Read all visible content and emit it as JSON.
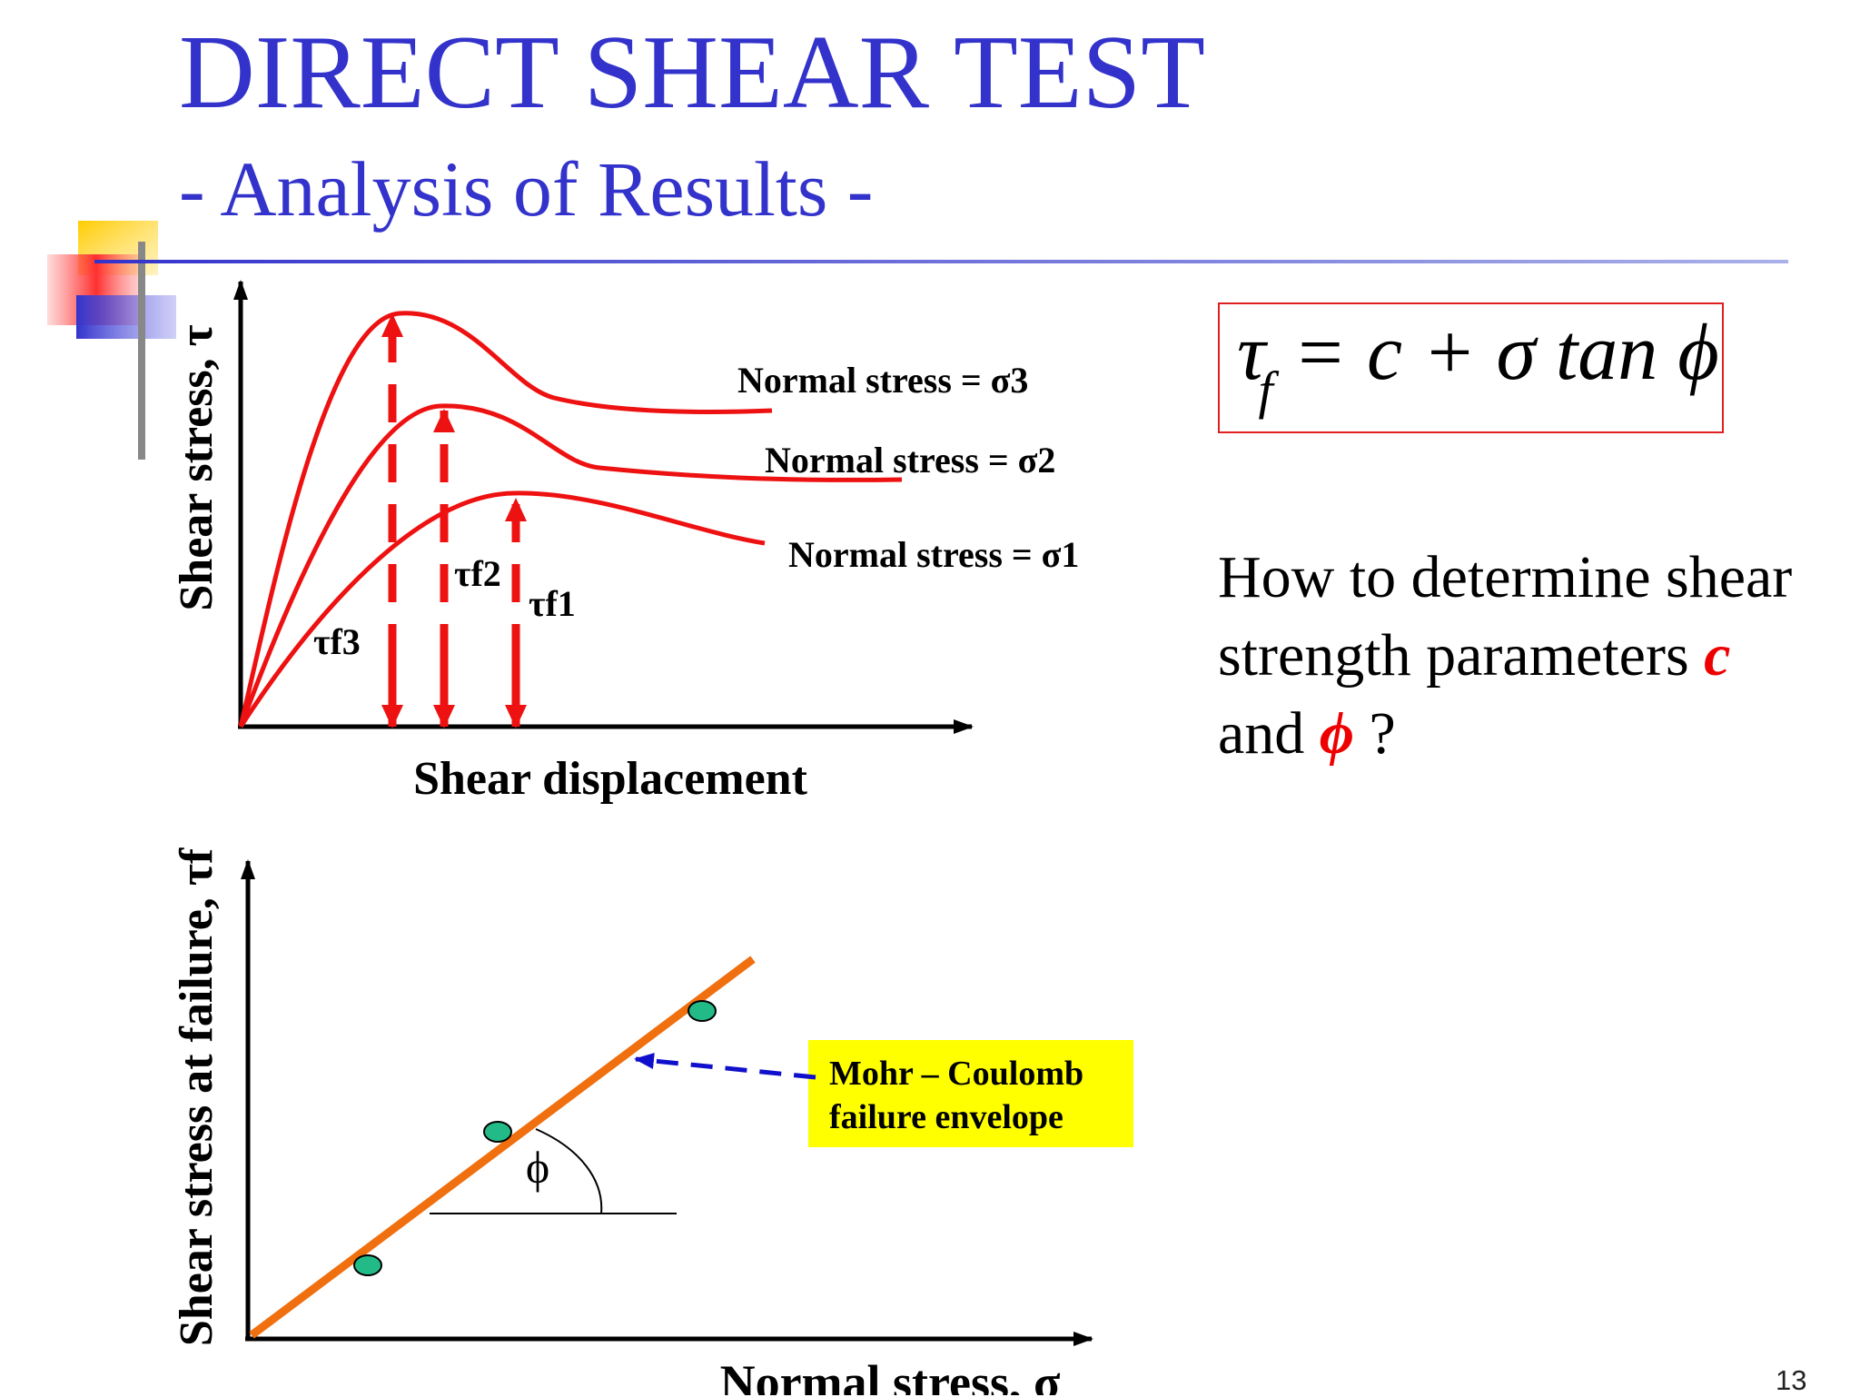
{
  "slide": {
    "title": "DIRECT SHEAR TEST",
    "subtitle": "- Analysis of Results -",
    "page_number": "13",
    "colors": {
      "title": "#3333cc",
      "curves": "#ee1111",
      "envelope": "#f07010",
      "points": "#22bb88",
      "callout": "#ffff00",
      "arrow": "#1010cc"
    }
  },
  "equation": {
    "lhs": "τ",
    "lhs_sub": "f",
    "rhs": "= c + σ tan ϕ"
  },
  "question": {
    "line1": "How to determine shear",
    "line2_pre": "strength parameters ",
    "c": "c",
    "line3_pre": "and ",
    "phi": "ϕ",
    "line3_post": " ?"
  },
  "chart_data": [
    {
      "type": "line",
      "xlabel": "Shear displacement",
      "ylabel": "Shear stress, τ",
      "series": [
        {
          "name": "Normal stress = σ3",
          "peak_label": "τf3"
        },
        {
          "name": "Normal stress = σ2",
          "peak_label": "τf2"
        },
        {
          "name": "Normal stress = σ1",
          "peak_label": "τf1"
        }
      ]
    },
    {
      "type": "scatter",
      "xlabel": "Normal stress, σ",
      "ylabel": "Shear stress at failure, τf",
      "angle_label": "ϕ",
      "callout": [
        "Mohr – Coulomb",
        "failure envelope"
      ]
    }
  ]
}
